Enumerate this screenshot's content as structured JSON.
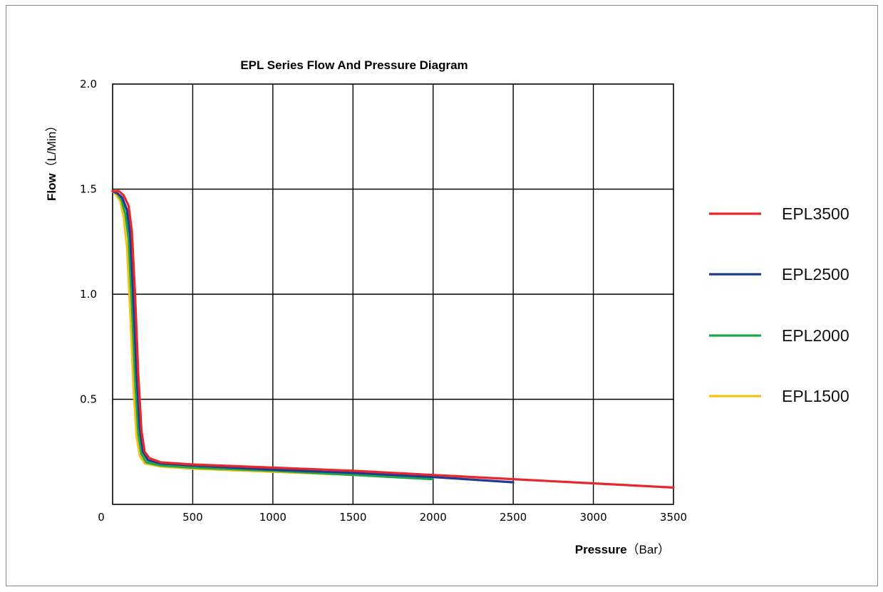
{
  "chart_data": {
    "type": "line",
    "title": "EPL Series Flow And Pressure Diagram",
    "xlabel": {
      "bold": "Pressure",
      "unit": "（Bar）"
    },
    "ylabel": {
      "bold": "Flow",
      "unit": "（L/Min）"
    },
    "xlim": [
      0,
      3500
    ],
    "ylim": [
      0,
      2.0
    ],
    "x_ticks": [
      0,
      500,
      1000,
      1500,
      2000,
      2500,
      3000,
      3500
    ],
    "x_tick_labels": [
      "0",
      "500",
      "1000",
      "1500",
      "2000",
      "2500",
      "3000",
      "3500"
    ],
    "y_ticks": [
      0.5,
      1.0,
      1.5,
      2.0
    ],
    "y_tick_labels": [
      "0.5",
      "1.0",
      "1.5",
      "2.0"
    ],
    "grid": true,
    "legend_position": "right",
    "series": [
      {
        "name": "EPL3500",
        "color": "#e8262b",
        "x": [
          0,
          40,
          70,
          100,
          120,
          140,
          160,
          180,
          200,
          230,
          300,
          500,
          1000,
          1500,
          2000,
          2500,
          3000,
          3500
        ],
        "y": [
          1.49,
          1.49,
          1.47,
          1.42,
          1.3,
          1.0,
          0.62,
          0.35,
          0.25,
          0.22,
          0.2,
          0.19,
          0.175,
          0.16,
          0.14,
          0.12,
          0.1,
          0.08
        ]
      },
      {
        "name": "EPL2500",
        "color": "#1f3a93",
        "x": [
          0,
          30,
          60,
          90,
          110,
          130,
          150,
          170,
          190,
          220,
          300,
          500,
          1000,
          1500,
          2000,
          2500
        ],
        "y": [
          1.49,
          1.48,
          1.46,
          1.4,
          1.28,
          0.98,
          0.62,
          0.36,
          0.25,
          0.21,
          0.195,
          0.185,
          0.165,
          0.15,
          0.13,
          0.105
        ]
      },
      {
        "name": "EPL2000",
        "color": "#1ea84a",
        "x": [
          0,
          30,
          55,
          80,
          100,
          120,
          140,
          160,
          180,
          210,
          300,
          500,
          1000,
          1500,
          2000
        ],
        "y": [
          1.49,
          1.48,
          1.45,
          1.38,
          1.26,
          0.96,
          0.6,
          0.34,
          0.24,
          0.2,
          0.185,
          0.175,
          0.16,
          0.14,
          0.12
        ]
      },
      {
        "name": "EPL1500",
        "color": "#f2c21b",
        "x": [
          0,
          25,
          50,
          70,
          90,
          110,
          130,
          150,
          170,
          200,
          300,
          500,
          1000,
          1500
        ],
        "y": [
          1.49,
          1.47,
          1.44,
          1.36,
          1.22,
          0.92,
          0.56,
          0.32,
          0.23,
          0.195,
          0.18,
          0.17,
          0.155,
          0.14
        ]
      }
    ]
  }
}
